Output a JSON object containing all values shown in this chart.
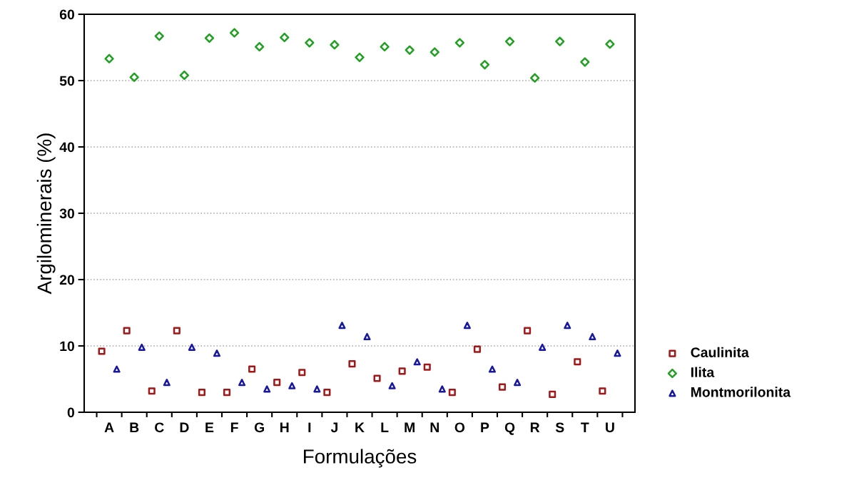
{
  "chart_data": {
    "type": "scatter",
    "xlabel": "Formulações",
    "ylabel": "Argilominerais (%)",
    "categories": [
      "A",
      "B",
      "C",
      "D",
      "E",
      "F",
      "G",
      "H",
      "I",
      "J",
      "K",
      "L",
      "M",
      "N",
      "O",
      "P",
      "Q",
      "R",
      "S",
      "T",
      "U"
    ],
    "series": [
      {
        "name": "Caulinita",
        "color": "#a01818",
        "marker": "square",
        "values": [
          9.2,
          12.3,
          3.2,
          12.3,
          3.0,
          3.0,
          6.5,
          4.5,
          6.0,
          3.0,
          7.3,
          5.1,
          6.2,
          6.8,
          3.0,
          9.5,
          3.8,
          12.3,
          2.7,
          7.6,
          3.2
        ]
      },
      {
        "name": "Ilita",
        "color": "#20a020",
        "marker": "diamond",
        "values": [
          53.3,
          50.5,
          56.7,
          50.8,
          56.4,
          57.2,
          55.1,
          56.5,
          55.7,
          55.4,
          53.5,
          55.1,
          54.6,
          54.3,
          55.7,
          52.4,
          55.9,
          50.4,
          55.9,
          52.8,
          55.5
        ]
      },
      {
        "name": "Montmorilonita",
        "color": "#1818a0",
        "marker": "triangle",
        "values": [
          6.5,
          9.8,
          4.5,
          9.8,
          8.9,
          4.5,
          3.5,
          4.0,
          3.5,
          13.1,
          11.4,
          4.0,
          7.6,
          3.5,
          13.1,
          6.5,
          4.5,
          9.8,
          13.1,
          11.4,
          8.9
        ]
      }
    ],
    "ylim": [
      0,
      60
    ],
    "yticks": [
      0,
      10,
      20,
      30,
      40,
      50,
      60
    ],
    "grid": "y",
    "legend": "right"
  }
}
